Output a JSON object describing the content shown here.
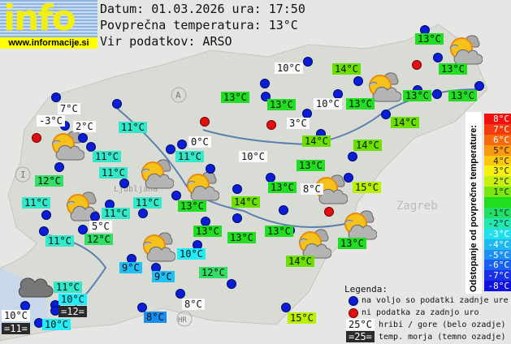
{
  "logo": {
    "text": "info",
    "url": "www.informacije.si"
  },
  "header": {
    "date_line": "Datum: 01.03.2026 ura: 17:50",
    "avg_line": "Povprečna temperatura: 13°C",
    "source_line": "Vir podatkov: ARSO"
  },
  "stations": [
    "7°C",
    "-3°C",
    "2°C",
    "11°C",
    "11°C",
    "0°C",
    "11°C",
    "11°C",
    "12°C",
    "11°C",
    "11°C",
    "11°C",
    "13°C",
    "5°C",
    "11°C",
    "12°C",
    "13°C",
    "13°C",
    "13°C",
    "10°C",
    "14°C",
    "13°C",
    "13°C",
    "13°C",
    "10°C",
    "13°C",
    "13°C",
    "13°C",
    "3°C",
    "14°C",
    "14°C",
    "14°C",
    "10°C",
    "13°C",
    "13°C",
    "8°C",
    "15°C",
    "14°C",
    "13°C",
    "13°C",
    "14°C",
    "10°C",
    "9°C",
    "9°C",
    "12°C",
    "11°C",
    "10°C",
    "10°C",
    "=11=",
    "=12=",
    "10°C",
    "8°C",
    "8°C",
    "15°C"
  ],
  "scale": {
    "title": "Odstopanje od povprečne temperature:",
    "values": [
      "8°C",
      "7°C",
      "6°C",
      "5°C",
      "4°C",
      "3°C",
      "2°C",
      "1°C",
      "",
      "-1°C",
      "-2°C",
      "-3°C",
      "-4°C",
      "-5°C",
      "-6°C",
      "-7°C",
      "-8°C"
    ],
    "colors": [
      "#f01010",
      "#f43a10",
      "#f66a10",
      "#f89a10",
      "#fac810",
      "#f6f010",
      "#c8f010",
      "#7ae810",
      "#20dd20",
      "#22dd66",
      "#22e8b0",
      "#22e0e8",
      "#20b8f0",
      "#2090f0",
      "#1a60f0",
      "#1830e8",
      "#1010e0"
    ]
  },
  "legend": {
    "title": "Legenda:",
    "blue": "na voljo so podatki zadnje ure",
    "red": "ni podatka za zadnjo uro",
    "mountain_sample": "25°C",
    "mountain": "hribi / gore (belo ozadje)",
    "sea_sample": "=25=",
    "sea": "temp. morja (temno ozadje)"
  },
  "map_labels": {
    "austria": "A",
    "italy": "I",
    "croatia": "HR",
    "ljubljana": "Ljubljana",
    "zagreb": "Zagreb"
  }
}
